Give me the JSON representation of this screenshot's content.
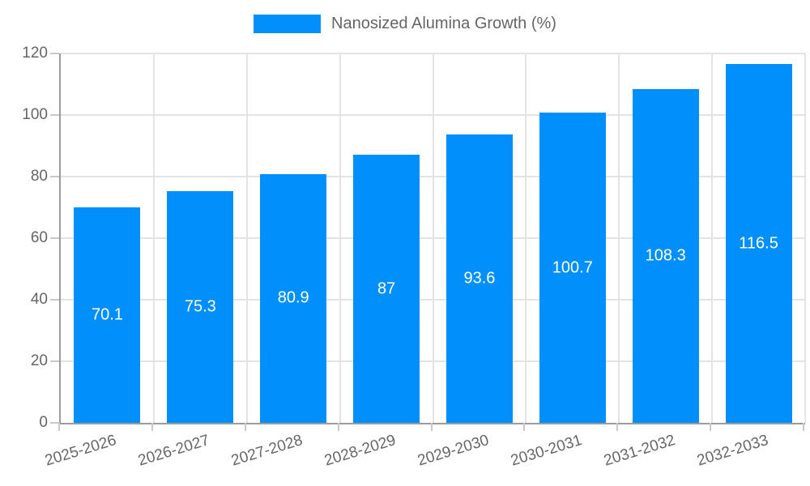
{
  "chart_data": {
    "type": "bar",
    "title": "",
    "legend": "Nanosized Alumina Growth (%)",
    "legend_position": "top",
    "categories": [
      "2025-2026",
      "2026-2027",
      "2027-2028",
      "2028-2029",
      "2029-2030",
      "2030-2031",
      "2031-2032",
      "2032-2033"
    ],
    "values": [
      70.1,
      75.3,
      80.9,
      87,
      93.6,
      100.7,
      108.3,
      116.5
    ],
    "value_labels": [
      "70.1",
      "75.3",
      "80.9",
      "87",
      "93.6",
      "100.7",
      "108.3",
      "116.5"
    ],
    "xlabel": "",
    "ylabel": "",
    "ylim": [
      0,
      120
    ],
    "ytick_step": 20,
    "ytick_labels": [
      "0",
      "20",
      "40",
      "60",
      "80",
      "100",
      "120"
    ],
    "grid": true,
    "x_label_rotation_deg": -17,
    "colors": {
      "bar": "#008FFB",
      "axis": "#9b9b9b",
      "grid": "#e3e3e3",
      "tick_mark": "#c9c9c9",
      "tick_text": "#666666",
      "value_text": "#ffffff",
      "legend_text": "#666666",
      "background": "#ffffff"
    }
  }
}
